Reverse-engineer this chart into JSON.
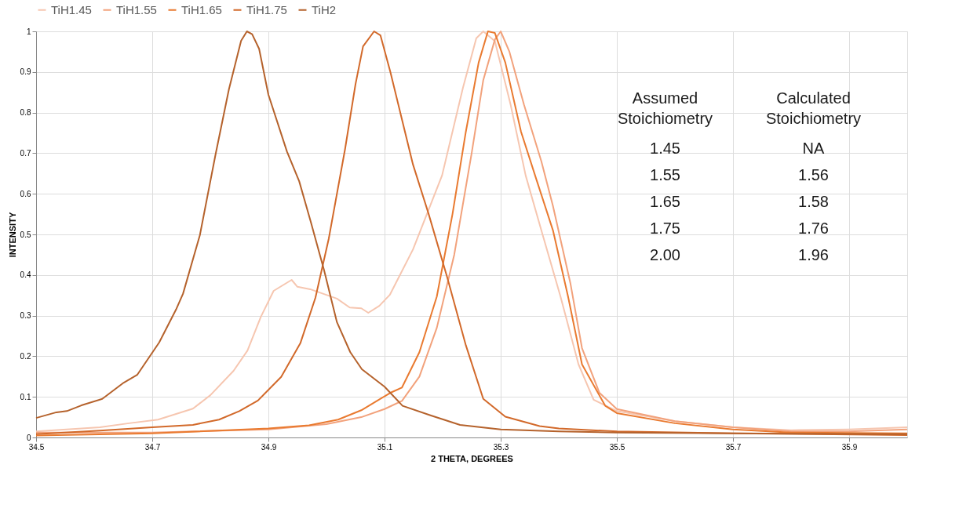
{
  "chart_data": {
    "type": "line",
    "xlabel": "2 THETA, DEGREES",
    "ylabel": "INTENSITY",
    "xlim": [
      34.5,
      36.0
    ],
    "xticks": [
      34.5,
      34.7,
      34.9,
      35.1,
      35.3,
      35.5,
      35.7,
      35.9
    ],
    "ylim": [
      0,
      1
    ],
    "yticks": [
      0,
      0.1,
      0.2,
      0.3,
      0.4,
      0.5,
      0.6,
      0.7,
      0.8,
      0.9,
      1
    ],
    "grid": true,
    "legend": "top",
    "marker": "none",
    "line_style": "solid",
    "annotations": [
      "Assumed Stoichiometry",
      "Calculated Stoichiometry",
      "1.45",
      "NA",
      "1.55",
      "1.56",
      "1.65",
      "1.58",
      "1.75",
      "1.76",
      "2.00",
      "1.96"
    ],
    "series": [
      {
        "name": "TiH1.45",
        "color": "#f6c6b0",
        "x": [
          34.5,
          34.61,
          34.66,
          34.71,
          34.77,
          34.8,
          34.84,
          34.864,
          34.887,
          34.909,
          34.94,
          34.95,
          34.972,
          35.018,
          35.04,
          35.06,
          35.072,
          35.091,
          35.109,
          35.149,
          35.199,
          35.235,
          35.258,
          35.27,
          35.29,
          35.317,
          35.343,
          35.37,
          35.403,
          35.434,
          35.46,
          35.5,
          35.6,
          35.7,
          35.8,
          35.9,
          36.0
        ],
        "values": [
          0.015,
          0.025,
          0.035,
          0.044,
          0.071,
          0.104,
          0.164,
          0.214,
          0.297,
          0.361,
          0.388,
          0.371,
          0.365,
          0.342,
          0.32,
          0.318,
          0.307,
          0.324,
          0.351,
          0.463,
          0.645,
          0.861,
          0.983,
          1.0,
          0.976,
          0.82,
          0.645,
          0.51,
          0.347,
          0.18,
          0.093,
          0.065,
          0.04,
          0.025,
          0.018,
          0.02,
          0.025
        ]
      },
      {
        "name": "TiH1.55",
        "color": "#f2a27c",
        "x": [
          34.5,
          34.7,
          34.9,
          35.0,
          35.06,
          35.1,
          35.13,
          35.16,
          35.19,
          35.22,
          35.25,
          35.27,
          35.29,
          35.3,
          35.315,
          35.34,
          35.37,
          35.39,
          35.42,
          35.44,
          35.47,
          35.5,
          35.6,
          35.7,
          35.8,
          35.9,
          36.0
        ],
        "values": [
          0.012,
          0.012,
          0.02,
          0.033,
          0.05,
          0.07,
          0.09,
          0.15,
          0.27,
          0.45,
          0.7,
          0.88,
          0.98,
          1.0,
          0.95,
          0.82,
          0.68,
          0.57,
          0.38,
          0.22,
          0.11,
          0.07,
          0.04,
          0.025,
          0.015,
          0.015,
          0.02
        ]
      },
      {
        "name": "TiH1.65",
        "color": "#e97a30",
        "x": [
          34.5,
          34.7,
          34.9,
          34.97,
          35.02,
          35.06,
          35.11,
          35.13,
          35.16,
          35.19,
          35.217,
          35.24,
          35.262,
          35.278,
          35.29,
          35.308,
          35.335,
          35.362,
          35.39,
          35.416,
          35.44,
          35.48,
          35.5,
          35.6,
          35.7,
          35.8,
          36.0
        ],
        "values": [
          0.005,
          0.01,
          0.022,
          0.03,
          0.044,
          0.067,
          0.11,
          0.123,
          0.21,
          0.347,
          0.55,
          0.753,
          0.923,
          1.0,
          0.996,
          0.923,
          0.753,
          0.633,
          0.51,
          0.347,
          0.18,
          0.078,
          0.06,
          0.035,
          0.02,
          0.012,
          0.01
        ]
      },
      {
        "name": "TiH1.75",
        "color": "#d2692a",
        "x": [
          34.5,
          34.61,
          34.7,
          34.77,
          34.815,
          34.85,
          34.882,
          34.922,
          34.955,
          34.981,
          35.004,
          35.032,
          35.05,
          35.063,
          35.082,
          35.093,
          35.11,
          35.149,
          35.176,
          35.208,
          35.24,
          35.27,
          35.308,
          35.367,
          35.4,
          35.5,
          35.7,
          36.0
        ],
        "values": [
          0.008,
          0.017,
          0.025,
          0.031,
          0.044,
          0.065,
          0.091,
          0.149,
          0.232,
          0.344,
          0.49,
          0.71,
          0.87,
          0.963,
          1.0,
          0.99,
          0.9,
          0.672,
          0.55,
          0.394,
          0.227,
          0.095,
          0.051,
          0.028,
          0.022,
          0.015,
          0.01,
          0.006
        ]
      },
      {
        "name": "TiH2",
        "color": "#b5622c",
        "x": [
          34.5,
          34.535,
          34.553,
          34.578,
          34.614,
          34.651,
          34.674,
          34.712,
          34.741,
          34.753,
          34.782,
          34.809,
          34.832,
          34.853,
          34.863,
          34.872,
          34.884,
          34.9,
          34.932,
          34.953,
          34.973,
          34.996,
          35.018,
          35.041,
          35.061,
          35.1,
          35.131,
          35.18,
          35.23,
          35.3,
          35.4,
          35.5,
          35.7,
          36.0
        ],
        "values": [
          0.048,
          0.062,
          0.065,
          0.079,
          0.095,
          0.135,
          0.154,
          0.234,
          0.315,
          0.354,
          0.498,
          0.697,
          0.857,
          0.977,
          1.0,
          0.993,
          0.957,
          0.844,
          0.704,
          0.631,
          0.531,
          0.411,
          0.284,
          0.21,
          0.168,
          0.125,
          0.078,
          0.054,
          0.031,
          0.02,
          0.015,
          0.012,
          0.01,
          0.008
        ]
      }
    ]
  }
}
